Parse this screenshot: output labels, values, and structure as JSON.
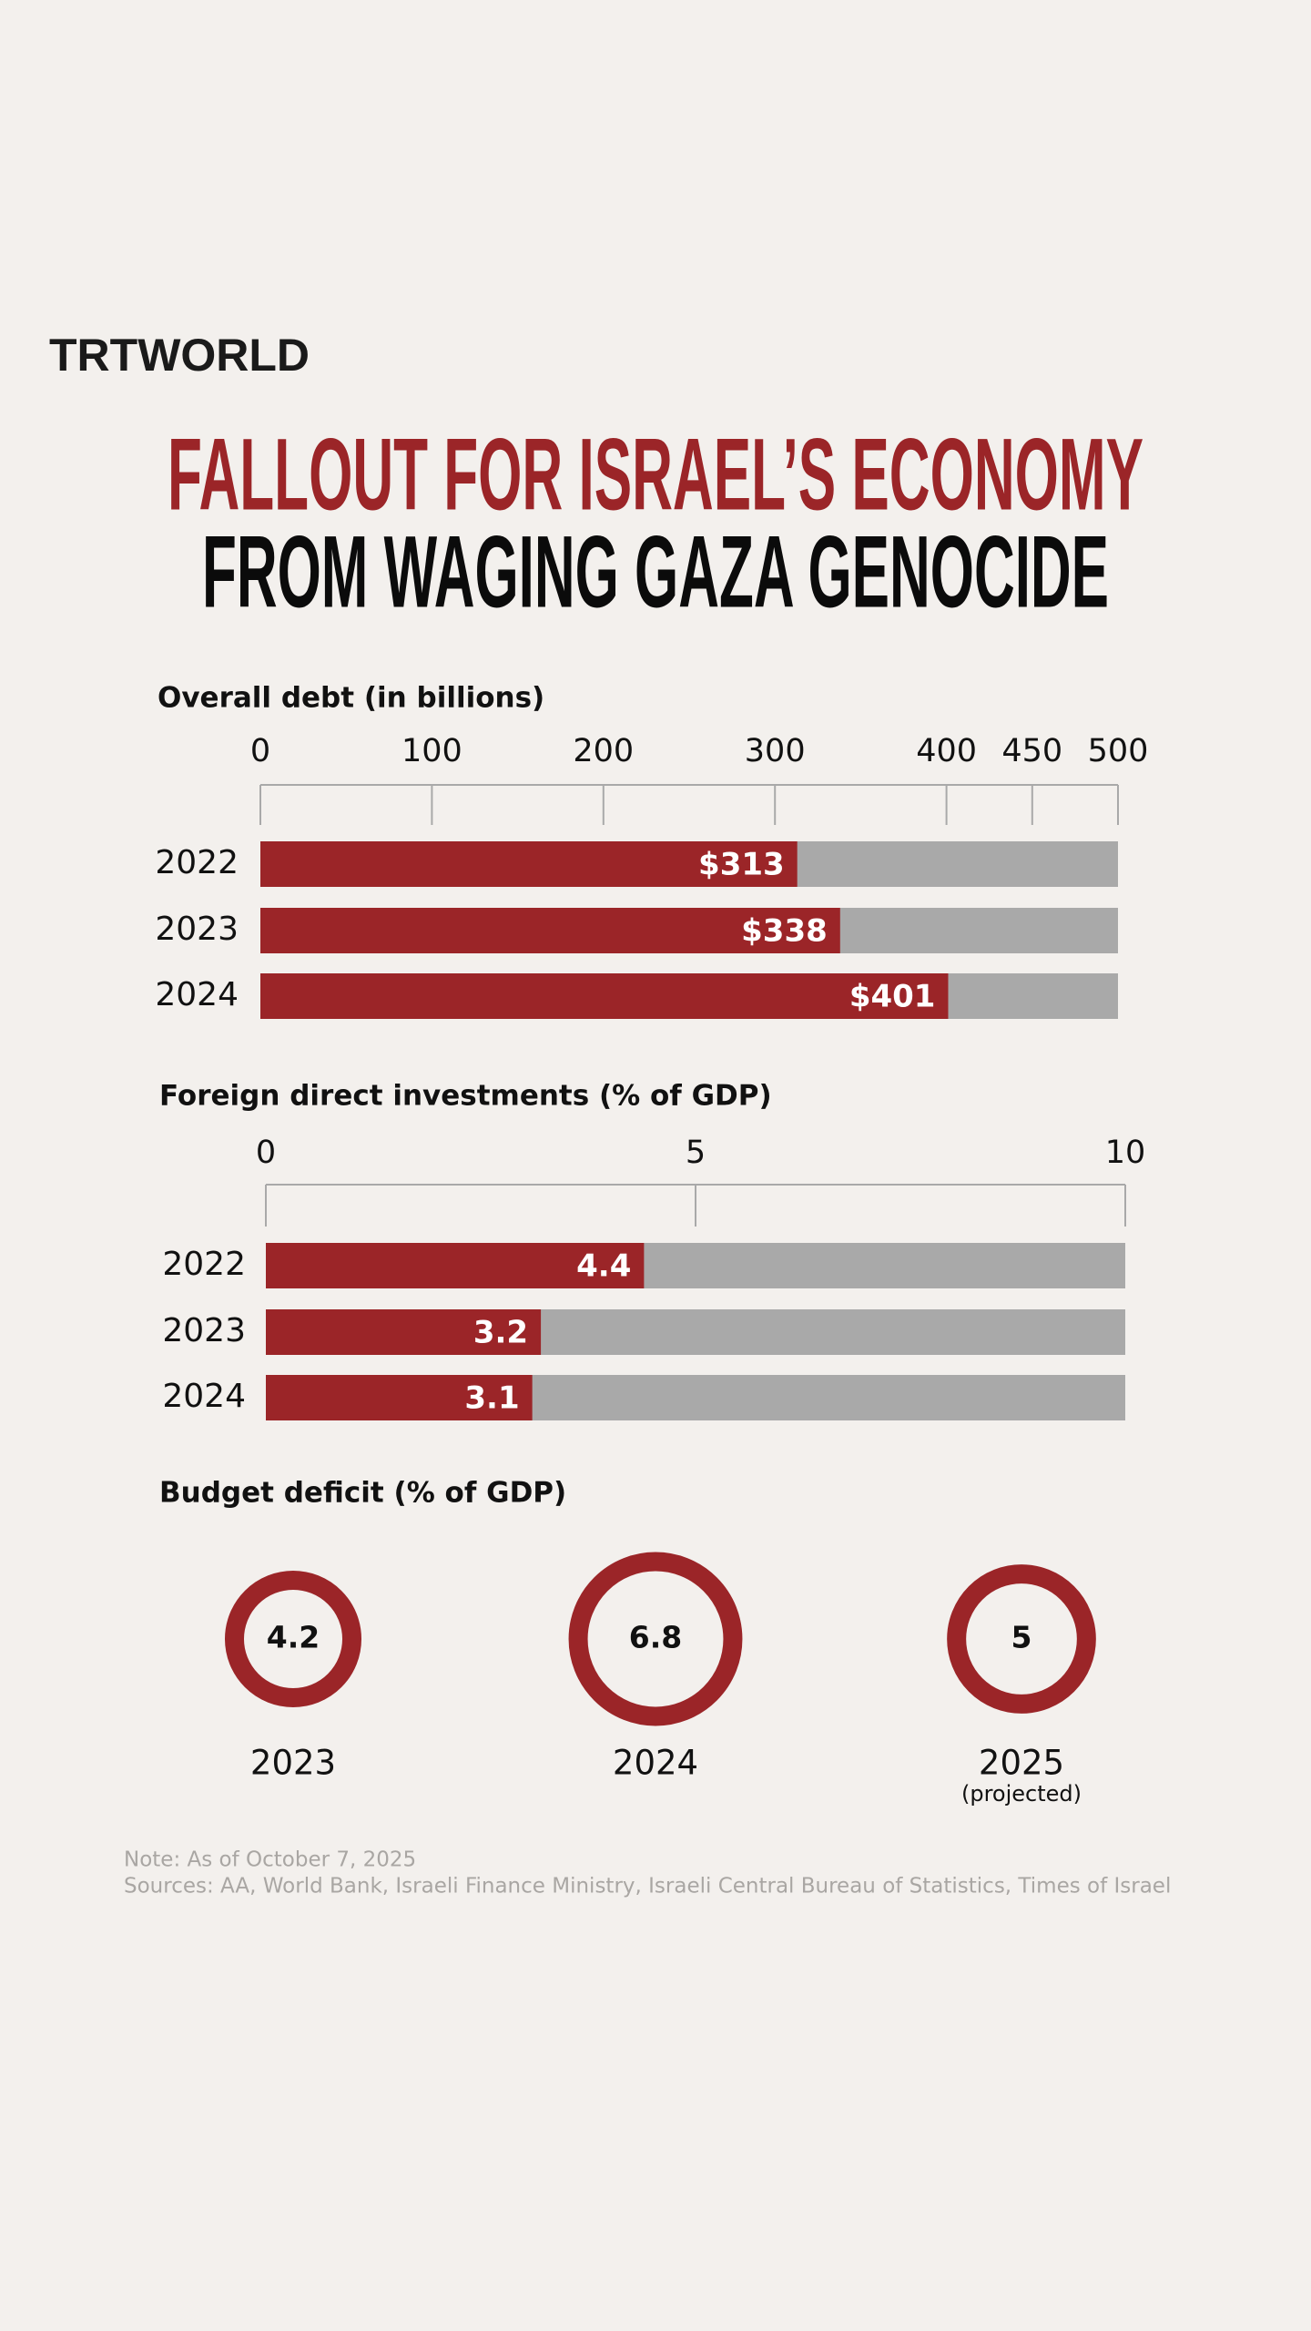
{
  "header": {
    "logo": "TRTWORLD",
    "title_line1": "FALLOUT FOR ISRAEL’S ECONOMY",
    "title_line2": "FROM WAGING GAZA GENOCIDE"
  },
  "chart_data": [
    {
      "type": "bar",
      "orientation": "horizontal",
      "title": "Overall debt (in billions)",
      "categories": [
        "2022",
        "2023",
        "2024"
      ],
      "values": [
        313,
        338,
        401
      ],
      "value_labels": [
        "$313",
        "$338",
        "$401"
      ],
      "color": "#9b2528",
      "track_color": "#a9a9a9",
      "xlim": [
        0,
        500
      ],
      "xticks": [
        0,
        100,
        200,
        300,
        400,
        450,
        500
      ]
    },
    {
      "type": "bar",
      "orientation": "horizontal",
      "title": "Foreign direct investments (% of GDP)",
      "categories": [
        "2022",
        "2023",
        "2024"
      ],
      "values": [
        4.4,
        3.2,
        3.1
      ],
      "color": "#9b2528",
      "track_color": "#a9a9a9",
      "xlim": [
        0,
        10
      ],
      "xticks": [
        0,
        5,
        10
      ]
    },
    {
      "type": "ring",
      "title": "Budget deficit (% of GDP)",
      "categories": [
        "2023",
        "2024",
        "2025"
      ],
      "category_notes": [
        null,
        null,
        "(projected)"
      ],
      "values": [
        4.2,
        6.8,
        5
      ],
      "color": "#9b2528"
    }
  ],
  "footer": {
    "note": "Note: As of October 7, 2025",
    "sources": "Sources: AA, World Bank, Israeli Finance Ministry, Israeli Central Bureau of Statistics, Times of Israel"
  }
}
